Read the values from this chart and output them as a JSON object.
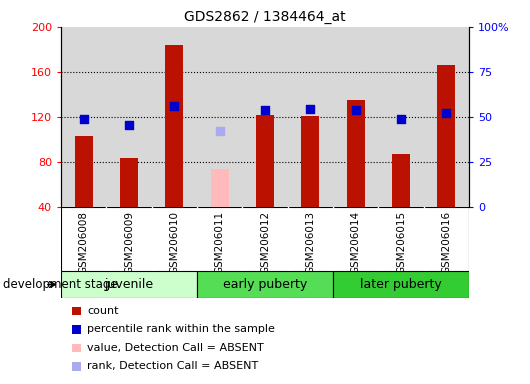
{
  "title": "GDS2862 / 1384464_at",
  "samples": [
    "GSM206008",
    "GSM206009",
    "GSM206010",
    "GSM206011",
    "GSM206012",
    "GSM206013",
    "GSM206014",
    "GSM206015",
    "GSM206016"
  ],
  "count_values": [
    103,
    84,
    184,
    null,
    122,
    121,
    135,
    87,
    166
  ],
  "absent_value": [
    null,
    null,
    null,
    74,
    null,
    null,
    null,
    null,
    null
  ],
  "rank_values": [
    118,
    113,
    130,
    null,
    126,
    127,
    126,
    118,
    124
  ],
  "absent_rank": [
    null,
    null,
    null,
    108,
    null,
    null,
    null,
    null,
    null
  ],
  "count_absent": [
    false,
    false,
    false,
    true,
    false,
    false,
    false,
    false,
    false
  ],
  "ylim_left": [
    40,
    200
  ],
  "ylim_right": [
    0,
    100
  ],
  "yticks_left": [
    40,
    80,
    120,
    160,
    200
  ],
  "yticks_right": [
    0,
    25,
    50,
    75,
    100
  ],
  "ytick_labels_left": [
    "40",
    "80",
    "120",
    "160",
    "200"
  ],
  "ytick_labels_right": [
    "0",
    "25",
    "50",
    "75",
    "100%"
  ],
  "groups": [
    {
      "label": "juvenile",
      "samples": [
        0,
        1,
        2
      ],
      "color": "#ccffcc"
    },
    {
      "label": "early puberty",
      "samples": [
        3,
        4,
        5
      ],
      "color": "#55dd55"
    },
    {
      "label": "later puberty",
      "samples": [
        6,
        7,
        8
      ],
      "color": "#33cc33"
    }
  ],
  "bar_color_present": "#bb1100",
  "bar_color_absent": "#ffbbbb",
  "rank_color_present": "#0000cc",
  "rank_color_absent": "#aaaaee",
  "bar_width": 0.4,
  "rank_marker_size": 40,
  "grid_color": "#000000",
  "background_color": "#ffffff",
  "plot_bg_color": "#d8d8d8",
  "xtick_bg_color": "#d8d8d8",
  "stage_label": "development stage",
  "legend_items": [
    {
      "label": "count",
      "color": "#bb1100"
    },
    {
      "label": "percentile rank within the sample",
      "color": "#0000cc"
    },
    {
      "label": "value, Detection Call = ABSENT",
      "color": "#ffbbbb"
    },
    {
      "label": "rank, Detection Call = ABSENT",
      "color": "#aaaaee"
    }
  ]
}
